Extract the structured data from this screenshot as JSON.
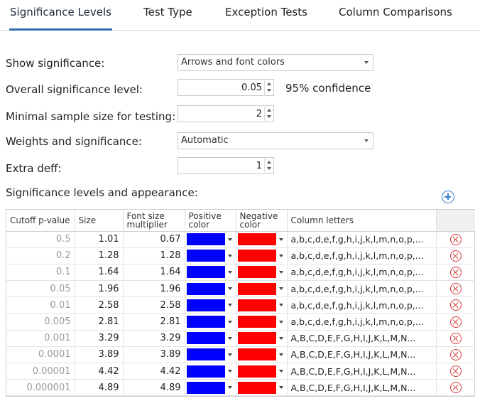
{
  "tabs": [
    {
      "label": "Significance Levels",
      "active": true
    },
    {
      "label": "Test Type",
      "active": false
    },
    {
      "label": "Exception Tests",
      "active": false
    },
    {
      "label": "Column Comparisons",
      "active": false
    }
  ],
  "form": {
    "show_significance": {
      "label": "Show significance:",
      "value": "Arrows and font colors"
    },
    "overall_level": {
      "label": "Overall significance level:",
      "value": "0.05",
      "note": "95% confidence"
    },
    "min_sample": {
      "label": "Minimal sample size for testing:",
      "value": "2"
    },
    "weights": {
      "label": "Weights and significance:",
      "value": "Automatic"
    },
    "extra_deff": {
      "label": "Extra deff:",
      "value": "1"
    }
  },
  "levels_section": {
    "title": "Significance levels and appearance:"
  },
  "table": {
    "headers": {
      "cutoff": "Cutoff p-value",
      "size": "Size",
      "font_size_1": "Font size",
      "font_size_2": "multiplier",
      "positive_1": "Positive",
      "positive_2": "color",
      "negative_1": "Negative",
      "negative_2": "color",
      "letters": "Column letters"
    },
    "colors": {
      "positive": "#0000ff",
      "negative": "#ff0000"
    },
    "rows": [
      {
        "cutoff": "0.5",
        "size": "1.01",
        "font": "0.67",
        "letters": "a,b,c,d,e,f,g,h,i,j,k,l,m,n,o,p,..."
      },
      {
        "cutoff": "0.2",
        "size": "1.28",
        "font": "1.28",
        "letters": "a,b,c,d,e,f,g,h,i,j,k,l,m,n,o,p,..."
      },
      {
        "cutoff": "0.1",
        "size": "1.64",
        "font": "1.64",
        "letters": "a,b,c,d,e,f,g,h,i,j,k,l,m,n,o,p,..."
      },
      {
        "cutoff": "0.05",
        "size": "1.96",
        "font": "1.96",
        "letters": "a,b,c,d,e,f,g,h,i,j,k,l,m,n,o,p,..."
      },
      {
        "cutoff": "0.01",
        "size": "2.58",
        "font": "2.58",
        "letters": "a,b,c,d,e,f,g,h,i,j,k,l,m,n,o,p,..."
      },
      {
        "cutoff": "0.005",
        "size": "2.81",
        "font": "2.81",
        "letters": "a,b,c,d,e,f,g,h,i,j,k,l,m,n,o,p,..."
      },
      {
        "cutoff": "0.001",
        "size": "3.29",
        "font": "3.29",
        "letters": "A,B,C,D,E,F,G,H,I,J,K,L,M,N..."
      },
      {
        "cutoff": "0.0001",
        "size": "3.89",
        "font": "3.89",
        "letters": "A,B,C,D,E,F,G,H,I,J,K,L,M,N..."
      },
      {
        "cutoff": "0.00001",
        "size": "4.42",
        "font": "4.42",
        "letters": "A,B,C,D,E,F,G,H,I,J,K,L,M,N..."
      },
      {
        "cutoff": "0.000001",
        "size": "4.89",
        "font": "4.89",
        "letters": "A,B,C,D,E,F,G,H,I,J,K,L,M,N..."
      }
    ]
  }
}
